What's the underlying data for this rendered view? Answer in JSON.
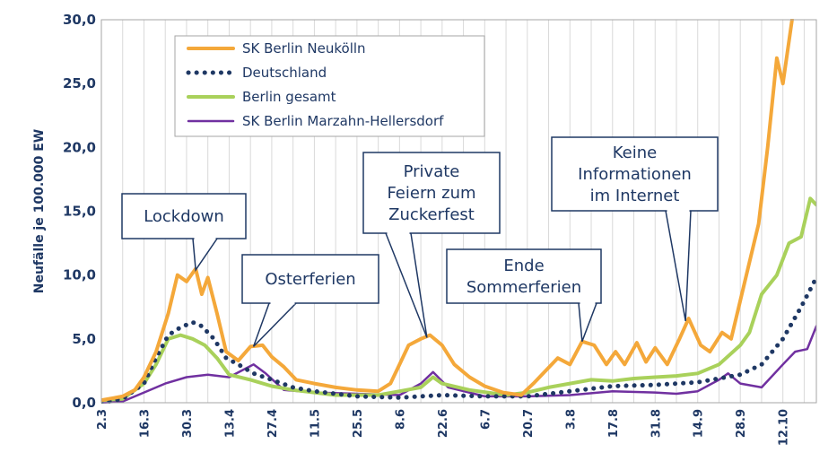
{
  "chart_data": {
    "type": "line",
    "ylabel": "Neufälle je 100.000 EW",
    "ylim": [
      0,
      30
    ],
    "yticks": [
      "0,0",
      "5,0",
      "10,0",
      "15,0",
      "20,0",
      "25,0",
      "30,0"
    ],
    "xticks": [
      "2.3",
      "16.3",
      "30.3",
      "13.4",
      "27.4",
      "11.5",
      "25.5",
      "8.6",
      "22.6",
      "6.7",
      "20.7",
      "3.8",
      "17.8",
      "31.8",
      "14.9",
      "28.9",
      "12.10"
    ],
    "x_start": "2020-03-02",
    "x_end": "2020-10-23",
    "grid": "vertical",
    "legend_position": "top-left",
    "series": [
      {
        "name": "SK Berlin Neukölln",
        "color": "#f4a83a",
        "style": "solid",
        "points": [
          [
            "2020-03-02",
            0.2
          ],
          [
            "2020-03-09",
            0.5
          ],
          [
            "2020-03-13",
            1.0
          ],
          [
            "2020-03-16",
            2.0
          ],
          [
            "2020-03-20",
            4.0
          ],
          [
            "2020-03-24",
            7.0
          ],
          [
            "2020-03-27",
            10.0
          ],
          [
            "2020-03-30",
            9.5
          ],
          [
            "2020-04-02",
            10.5
          ],
          [
            "2020-04-04",
            8.5
          ],
          [
            "2020-04-06",
            9.8
          ],
          [
            "2020-04-09",
            7.0
          ],
          [
            "2020-04-12",
            4.0
          ],
          [
            "2020-04-16",
            3.3
          ],
          [
            "2020-04-20",
            4.4
          ],
          [
            "2020-04-24",
            4.5
          ],
          [
            "2020-04-27",
            3.6
          ],
          [
            "2020-05-01",
            2.8
          ],
          [
            "2020-05-05",
            1.8
          ],
          [
            "2020-05-11",
            1.5
          ],
          [
            "2020-05-18",
            1.2
          ],
          [
            "2020-05-25",
            1.0
          ],
          [
            "2020-06-01",
            0.9
          ],
          [
            "2020-06-05",
            1.5
          ],
          [
            "2020-06-08",
            3.0
          ],
          [
            "2020-06-11",
            4.5
          ],
          [
            "2020-06-15",
            5.0
          ],
          [
            "2020-06-18",
            5.3
          ],
          [
            "2020-06-22",
            4.5
          ],
          [
            "2020-06-26",
            3.0
          ],
          [
            "2020-07-01",
            2.0
          ],
          [
            "2020-07-06",
            1.3
          ],
          [
            "2020-07-12",
            0.8
          ],
          [
            "2020-07-18",
            0.6
          ],
          [
            "2020-07-22",
            1.5
          ],
          [
            "2020-07-26",
            2.5
          ],
          [
            "2020-07-30",
            3.5
          ],
          [
            "2020-08-03",
            3.0
          ],
          [
            "2020-08-07",
            4.8
          ],
          [
            "2020-08-11",
            4.5
          ],
          [
            "2020-08-15",
            3.0
          ],
          [
            "2020-08-18",
            4.0
          ],
          [
            "2020-08-21",
            3.0
          ],
          [
            "2020-08-25",
            4.7
          ],
          [
            "2020-08-28",
            3.2
          ],
          [
            "2020-08-31",
            4.3
          ],
          [
            "2020-09-04",
            3.0
          ],
          [
            "2020-09-08",
            5.0
          ],
          [
            "2020-09-11",
            6.6
          ],
          [
            "2020-09-15",
            4.5
          ],
          [
            "2020-09-18",
            4.0
          ],
          [
            "2020-09-22",
            5.5
          ],
          [
            "2020-09-25",
            5.0
          ],
          [
            "2020-09-28",
            8.0
          ],
          [
            "2020-10-01",
            11.0
          ],
          [
            "2020-10-04",
            14.0
          ],
          [
            "2020-10-07",
            20.0
          ],
          [
            "2020-10-10",
            27.0
          ],
          [
            "2020-10-12",
            25.0
          ],
          [
            "2020-10-15",
            30.0
          ]
        ]
      },
      {
        "name": "Deutschland",
        "color": "#1f3864",
        "style": "dotted",
        "points": [
          [
            "2020-03-02",
            0.0
          ],
          [
            "2020-03-09",
            0.3
          ],
          [
            "2020-03-16",
            1.5
          ],
          [
            "2020-03-20",
            3.5
          ],
          [
            "2020-03-24",
            5.3
          ],
          [
            "2020-03-28",
            5.9
          ],
          [
            "2020-04-01",
            6.3
          ],
          [
            "2020-04-04",
            6.0
          ],
          [
            "2020-04-08",
            5.0
          ],
          [
            "2020-04-12",
            3.5
          ],
          [
            "2020-04-16",
            3.0
          ],
          [
            "2020-04-21",
            2.3
          ],
          [
            "2020-04-27",
            1.8
          ],
          [
            "2020-05-04",
            1.2
          ],
          [
            "2020-05-11",
            0.9
          ],
          [
            "2020-05-18",
            0.7
          ],
          [
            "2020-05-25",
            0.5
          ],
          [
            "2020-06-08",
            0.4
          ],
          [
            "2020-06-22",
            0.6
          ],
          [
            "2020-07-06",
            0.5
          ],
          [
            "2020-07-20",
            0.5
          ],
          [
            "2020-08-03",
            0.9
          ],
          [
            "2020-08-17",
            1.3
          ],
          [
            "2020-08-31",
            1.4
          ],
          [
            "2020-09-14",
            1.6
          ],
          [
            "2020-09-28",
            2.2
          ],
          [
            "2020-10-05",
            3.0
          ],
          [
            "2020-10-12",
            5.0
          ],
          [
            "2020-10-18",
            7.5
          ],
          [
            "2020-10-23",
            9.8
          ]
        ]
      },
      {
        "name": "Berlin gesamt",
        "color": "#a9d15b",
        "style": "solid",
        "points": [
          [
            "2020-03-02",
            0.2
          ],
          [
            "2020-03-09",
            0.3
          ],
          [
            "2020-03-16",
            1.5
          ],
          [
            "2020-03-20",
            3.0
          ],
          [
            "2020-03-24",
            5.0
          ],
          [
            "2020-03-28",
            5.3
          ],
          [
            "2020-04-01",
            5.0
          ],
          [
            "2020-04-05",
            4.5
          ],
          [
            "2020-04-09",
            3.5
          ],
          [
            "2020-04-13",
            2.2
          ],
          [
            "2020-04-20",
            1.8
          ],
          [
            "2020-04-27",
            1.3
          ],
          [
            "2020-05-04",
            1.0
          ],
          [
            "2020-05-11",
            0.8
          ],
          [
            "2020-05-18",
            0.6
          ],
          [
            "2020-06-01",
            0.6
          ],
          [
            "2020-06-08",
            0.9
          ],
          [
            "2020-06-15",
            1.2
          ],
          [
            "2020-06-19",
            2.0
          ],
          [
            "2020-06-22",
            1.5
          ],
          [
            "2020-07-01",
            1.0
          ],
          [
            "2020-07-13",
            0.6
          ],
          [
            "2020-07-20",
            0.8
          ],
          [
            "2020-07-27",
            1.2
          ],
          [
            "2020-08-03",
            1.5
          ],
          [
            "2020-08-10",
            1.8
          ],
          [
            "2020-08-17",
            1.7
          ],
          [
            "2020-08-24",
            1.9
          ],
          [
            "2020-08-31",
            2.0
          ],
          [
            "2020-09-07",
            2.1
          ],
          [
            "2020-09-14",
            2.3
          ],
          [
            "2020-09-21",
            3.0
          ],
          [
            "2020-09-28",
            4.5
          ],
          [
            "2020-10-01",
            5.5
          ],
          [
            "2020-10-05",
            8.5
          ],
          [
            "2020-10-10",
            10.0
          ],
          [
            "2020-10-14",
            12.5
          ],
          [
            "2020-10-18",
            13.0
          ],
          [
            "2020-10-21",
            16.0
          ],
          [
            "2020-10-23",
            15.5
          ]
        ]
      },
      {
        "name": "SK Berlin Marzahn-Hellersdorf",
        "color": "#7030a0",
        "style": "solid",
        "points": [
          [
            "2020-03-02",
            0.0
          ],
          [
            "2020-03-09",
            0.1
          ],
          [
            "2020-03-16",
            0.8
          ],
          [
            "2020-03-23",
            1.5
          ],
          [
            "2020-03-30",
            2.0
          ],
          [
            "2020-04-06",
            2.2
          ],
          [
            "2020-04-13",
            2.0
          ],
          [
            "2020-04-17",
            2.5
          ],
          [
            "2020-04-21",
            3.0
          ],
          [
            "2020-04-25",
            2.3
          ],
          [
            "2020-05-01",
            1.0
          ],
          [
            "2020-05-11",
            0.8
          ],
          [
            "2020-05-25",
            0.7
          ],
          [
            "2020-06-08",
            0.6
          ],
          [
            "2020-06-15",
            1.5
          ],
          [
            "2020-06-19",
            2.4
          ],
          [
            "2020-06-24",
            1.2
          ],
          [
            "2020-07-06",
            0.5
          ],
          [
            "2020-07-20",
            0.5
          ],
          [
            "2020-08-03",
            0.6
          ],
          [
            "2020-08-17",
            0.9
          ],
          [
            "2020-08-31",
            0.8
          ],
          [
            "2020-09-07",
            0.7
          ],
          [
            "2020-09-14",
            0.9
          ],
          [
            "2020-09-21",
            1.8
          ],
          [
            "2020-09-24",
            2.3
          ],
          [
            "2020-09-28",
            1.5
          ],
          [
            "2020-10-05",
            1.2
          ],
          [
            "2020-10-12",
            3.0
          ],
          [
            "2020-10-16",
            4.0
          ],
          [
            "2020-10-20",
            4.2
          ],
          [
            "2020-10-23",
            6.0
          ]
        ]
      }
    ],
    "annotations": [
      {
        "lines": [
          "Lockdown"
        ],
        "target": [
          "2020-04-02",
          10.4
        ]
      },
      {
        "lines": [
          "Osterferien"
        ],
        "target": [
          "2020-04-21",
          4.4
        ]
      },
      {
        "lines": [
          "Private",
          "Feiern zum",
          "Zuckerfest"
        ],
        "target": [
          "2020-06-17",
          5.1
        ]
      },
      {
        "lines": [
          "Ende",
          "Sommerferien"
        ],
        "target": [
          "2020-08-07",
          4.8
        ]
      },
      {
        "lines": [
          "Keine",
          "Informationen",
          "im Internet"
        ],
        "target": [
          "2020-09-10",
          6.4
        ]
      }
    ]
  }
}
